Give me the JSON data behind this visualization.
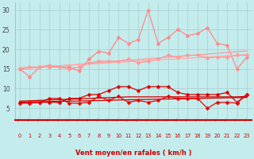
{
  "bg_color": "#c4ecec",
  "grid_color": "#aacccc",
  "xlabel": "Vent moyen/en rafales ( km/h )",
  "x": [
    0,
    1,
    2,
    3,
    4,
    5,
    6,
    7,
    8,
    9,
    10,
    11,
    12,
    13,
    14,
    15,
    16,
    17,
    18,
    19,
    20,
    21,
    22,
    23
  ],
  "ylim": [
    2,
    32
  ],
  "yticks": [
    5,
    10,
    15,
    20,
    25,
    30
  ],
  "xlim": [
    -0.5,
    23.5
  ],
  "series": [
    {
      "name": "rafales_jagged",
      "color": "#ff8888",
      "lw": 0.9,
      "marker": "D",
      "ms": 2.5,
      "values": [
        15.0,
        13.0,
        15.5,
        15.5,
        15.5,
        15.5,
        14.5,
        17.5,
        19.5,
        19.0,
        23.0,
        21.5,
        22.5,
        30.0,
        21.5,
        23.0,
        25.0,
        23.5,
        24.0,
        25.5,
        21.5,
        21.0,
        15.0,
        18.0
      ]
    },
    {
      "name": "trend_rafales_high",
      "color": "#ff9999",
      "lw": 0.9,
      "marker": null,
      "ms": 0,
      "values": [
        15.0,
        15.2,
        15.4,
        15.6,
        15.8,
        16.0,
        16.2,
        16.4,
        16.6,
        16.8,
        17.0,
        17.2,
        17.4,
        17.6,
        17.8,
        18.0,
        18.2,
        18.4,
        18.6,
        18.8,
        19.0,
        19.2,
        19.4,
        19.6
      ]
    },
    {
      "name": "trend_rafales_low",
      "color": "#ffaaaa",
      "lw": 0.9,
      "marker": null,
      "ms": 0,
      "values": [
        15.2,
        15.35,
        15.5,
        15.65,
        15.8,
        15.95,
        16.1,
        16.25,
        16.4,
        16.55,
        16.7,
        16.85,
        17.0,
        17.15,
        17.3,
        17.45,
        17.6,
        17.75,
        17.9,
        18.05,
        18.2,
        18.35,
        18.5,
        18.65
      ]
    },
    {
      "name": "rafales_lower_jagged",
      "color": "#ff9999",
      "lw": 0.9,
      "marker": "D",
      "ms": 2.5,
      "values": [
        15.2,
        15.5,
        15.5,
        16.0,
        15.5,
        15.0,
        15.5,
        16.5,
        17.0,
        17.0,
        17.0,
        17.5,
        16.5,
        17.0,
        17.5,
        18.5,
        18.0,
        18.5,
        18.5,
        17.8,
        18.0,
        18.0,
        18.5,
        18.5
      ]
    },
    {
      "name": "vent_moyen_jagged_top",
      "color": "#dd0000",
      "lw": 0.9,
      "marker": "D",
      "ms": 2.5,
      "values": [
        6.5,
        6.5,
        6.5,
        6.5,
        6.5,
        7.5,
        7.5,
        8.5,
        8.5,
        9.5,
        10.5,
        10.5,
        9.5,
        10.5,
        10.5,
        10.5,
        9.0,
        8.5,
        8.5,
        8.5,
        8.5,
        9.0,
        6.5,
        8.5
      ]
    },
    {
      "name": "vent_moyen_flat_high",
      "color": "#cc0000",
      "lw": 0.9,
      "marker": null,
      "ms": 0,
      "values": [
        6.8,
        6.9,
        7.0,
        7.1,
        7.2,
        7.3,
        7.4,
        7.5,
        7.6,
        7.7,
        7.8,
        7.9,
        7.9,
        7.9,
        7.9,
        7.9,
        7.9,
        7.9,
        7.9,
        7.9,
        7.9,
        7.9,
        7.9,
        8.0
      ]
    },
    {
      "name": "vent_moyen_flat_low",
      "color": "#cc0000",
      "lw": 0.9,
      "marker": null,
      "ms": 0,
      "values": [
        6.5,
        6.6,
        6.65,
        6.7,
        6.75,
        6.8,
        6.85,
        6.9,
        6.95,
        7.0,
        7.1,
        7.15,
        7.2,
        7.25,
        7.3,
        7.35,
        7.4,
        7.45,
        7.5,
        7.55,
        7.6,
        7.65,
        7.7,
        7.75
      ]
    },
    {
      "name": "vent_moyen_jagged_bot",
      "color": "#ee0000",
      "lw": 0.9,
      "marker": "D",
      "ms": 2.5,
      "values": [
        6.3,
        6.3,
        6.5,
        7.5,
        7.5,
        6.3,
        6.3,
        6.5,
        8.0,
        7.0,
        8.0,
        6.5,
        7.0,
        6.5,
        7.0,
        8.0,
        7.5,
        7.5,
        7.5,
        5.0,
        6.5,
        6.5,
        6.3,
        8.5
      ]
    }
  ],
  "arrow_color": "#cc1111",
  "xtick_color": "#cc0000",
  "ytick_color": "#444444",
  "xlabel_color": "#cc0000",
  "bottom_spine_color": "#cc0000"
}
